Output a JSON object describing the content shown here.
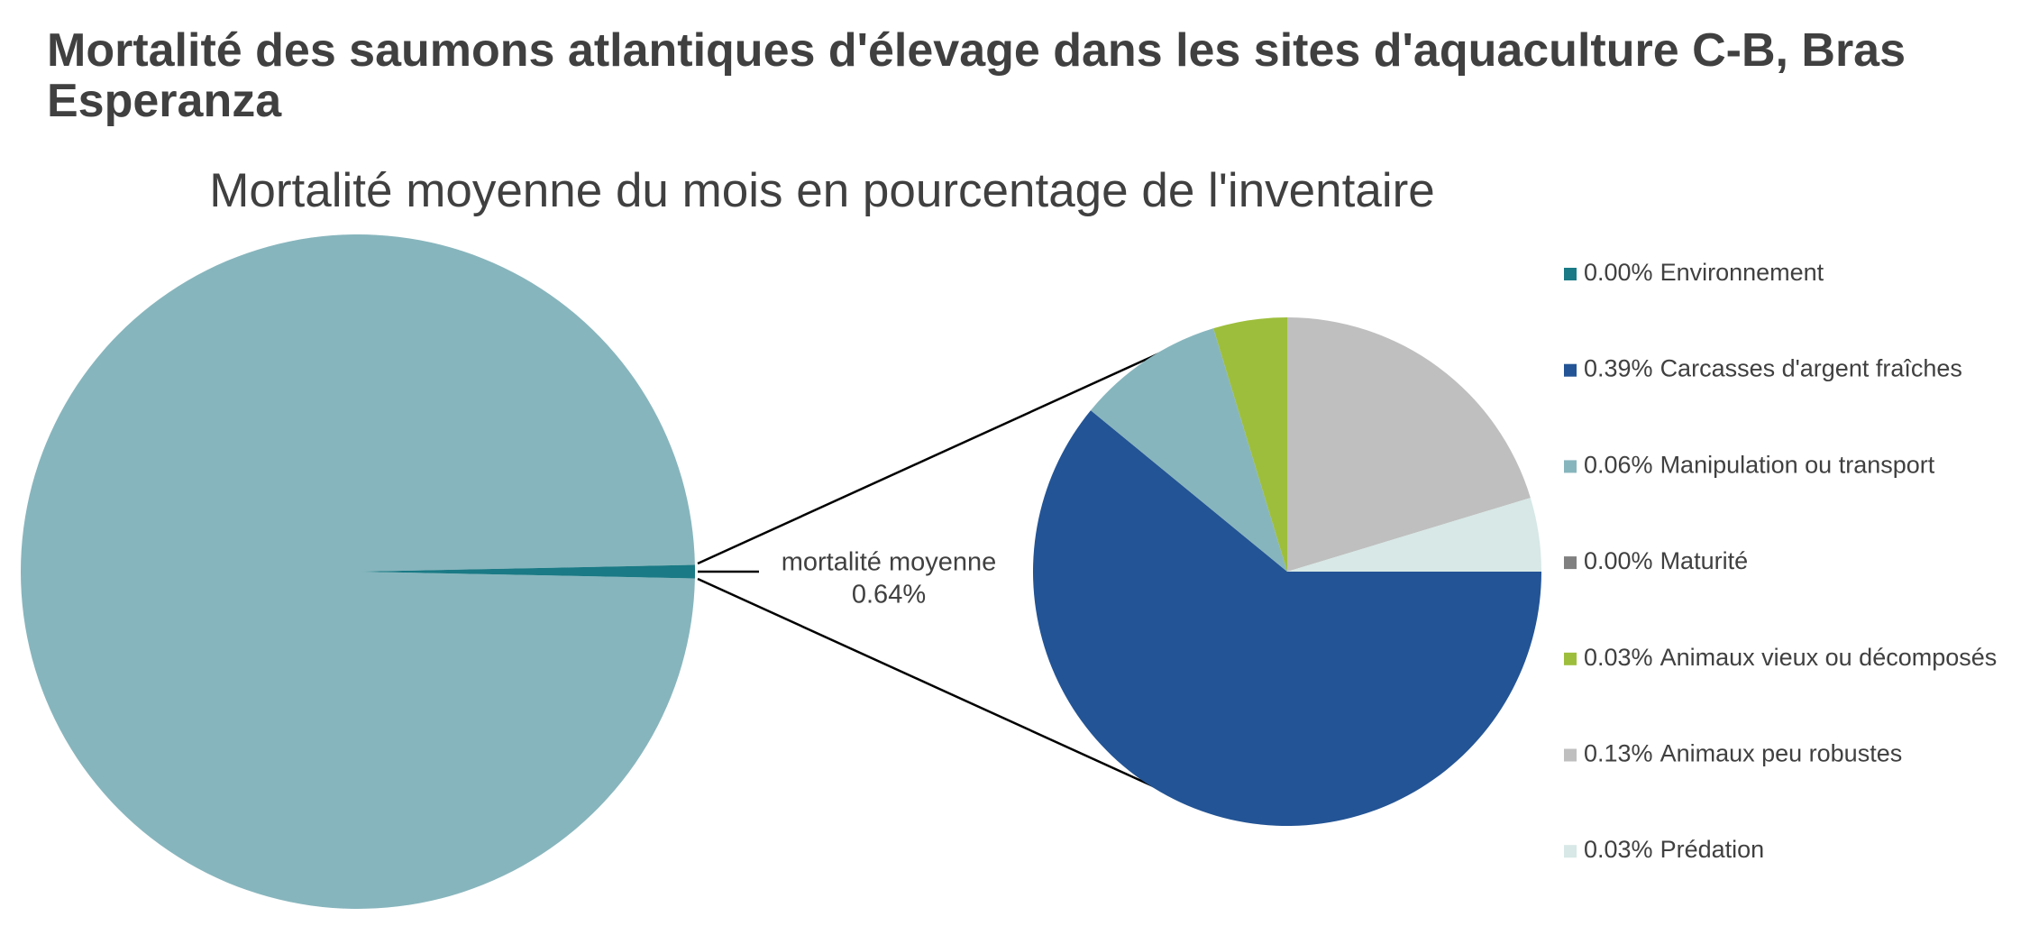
{
  "chart_data": {
    "type": "pie_of_pie",
    "title": "Mortalité des saumons atlantiques d'élevage dans les sites d'aquaculture C-B, Bras Esperanza",
    "subtitle": "Mortalité moyenne du mois en pourcentage de l'inventaire",
    "main": {
      "categories": [
        null,
        "mortalité moyenne"
      ],
      "values": [
        99.36,
        0.64
      ],
      "value_labels": [
        null,
        "0.64%"
      ],
      "colors": [
        "#87b5bd",
        "#1a7a85"
      ]
    },
    "detail": {
      "categories": [
        "Environnement",
        "Carcasses d'argent fraîches",
        "Manipulation ou transport",
        "Maturité",
        "Animaux vieux ou décomposés",
        "Animaux peu robustes",
        "Prédation"
      ],
      "values": [
        0.0,
        0.39,
        0.06,
        0.0,
        0.03,
        0.13,
        0.03
      ],
      "value_labels": [
        "0.00%",
        "0.39%",
        "0.06%",
        "0.00%",
        "0.03%",
        "0.13%",
        "0.03%"
      ],
      "colors": [
        "#1a7a85",
        "#235495",
        "#87b5bd",
        "#808080",
        "#9dbe3c",
        "#bfbfbf",
        "#d7e8e6"
      ]
    },
    "legend": "right"
  }
}
